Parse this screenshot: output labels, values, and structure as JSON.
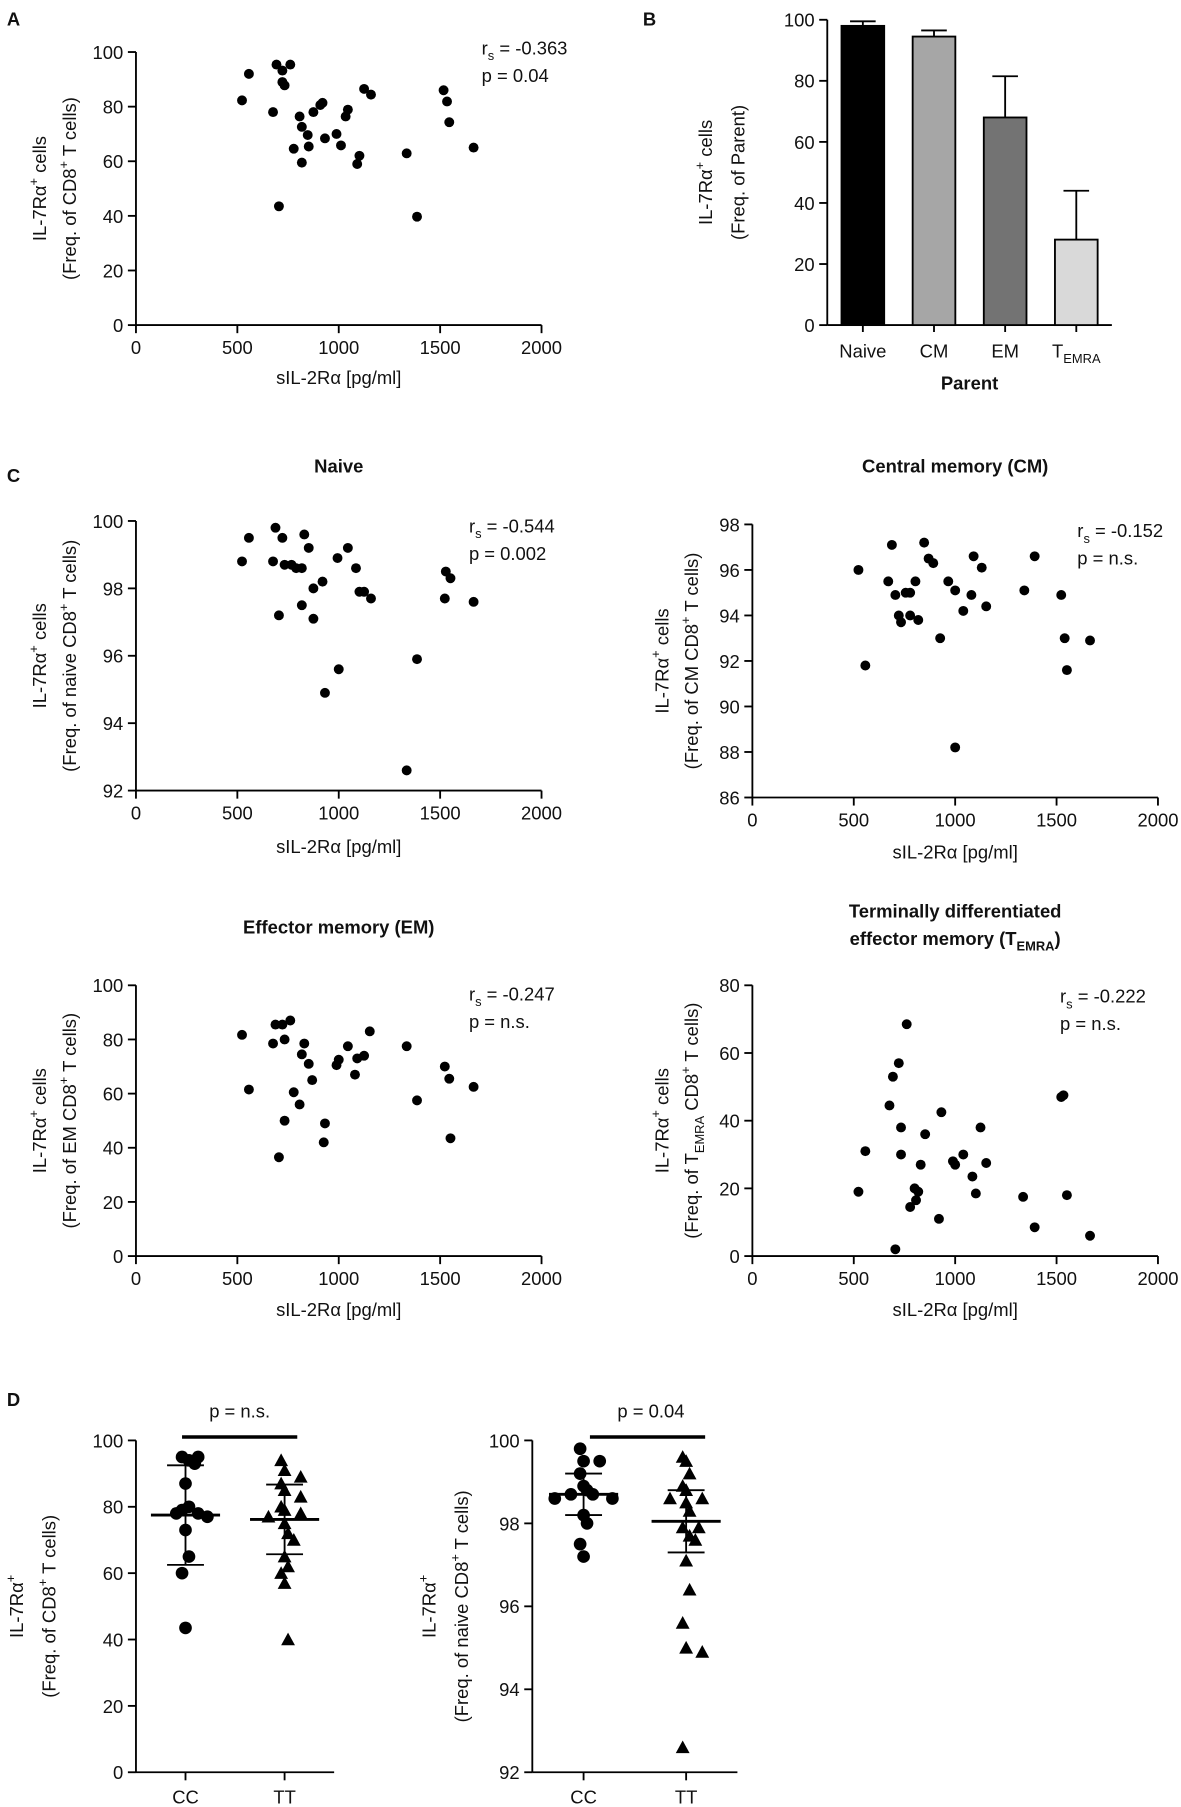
{
  "chart_data": [
    {
      "type": "scatter",
      "panel": "A",
      "ylabel": [
        [
          {
            "text": "IL-7Rα"
          },
          {
            "text": "+",
            "pos": "sup"
          },
          {
            "text": " cells"
          }
        ],
        [
          {
            "text": "(Freq. of CD8"
          },
          {
            "text": "+",
            "pos": "sup"
          },
          {
            "text": " T cells)"
          }
        ]
      ],
      "xlabel": "sIL-2Rα [pg/ml]",
      "annotations": [
        [
          {
            "text": "r"
          },
          {
            "text": "s",
            "pos": "sub"
          },
          {
            "text": " = -0.363"
          }
        ],
        "p = 0.04"
      ],
      "x": [
        523,
        557,
        693,
        722,
        733,
        722,
        761,
        676,
        705,
        778,
        807,
        818,
        847,
        818,
        875,
        920,
        909,
        852,
        932,
        989,
        1011,
        1045,
        1034,
        1091,
        1102,
        1125,
        1159,
        1335,
        1386,
        1517,
        1534,
        1545,
        1665
      ],
      "values": [
        82.3,
        92,
        95.4,
        93.2,
        87.8,
        89,
        95.4,
        78,
        43.5,
        64.6,
        76.4,
        72.6,
        69.6,
        59.5,
        78,
        81.4,
        80.6,
        65.4,
        68.4,
        70,
        65.8,
        78.9,
        76.4,
        59,
        62,
        86.5,
        84.4,
        62.9,
        39.7,
        86,
        81.9,
        74.3,
        65
      ],
      "color": "#000000",
      "xlim": [
        0,
        2000
      ],
      "xticks": [
        0,
        500,
        1000,
        1500,
        2000
      ],
      "ylim": [
        0,
        100
      ],
      "yticks": [
        0,
        20,
        40,
        60,
        80,
        100
      ]
    },
    {
      "type": "bar",
      "panel": "B",
      "ylabel": [
        [
          {
            "text": "IL-7Rα"
          },
          {
            "text": "+",
            "pos": "sup"
          },
          {
            "text": " cells"
          }
        ],
        "(Freq. of Parent)"
      ],
      "xlabel": "Parent",
      "categories": [
        "Naive",
        "CM",
        "EM",
        [
          {
            "text": "T"
          },
          {
            "text": "EMRA",
            "pos": "sub"
          }
        ]
      ],
      "values": [
        98,
        94.5,
        68,
        28
      ],
      "errors": [
        1.5,
        2,
        13.5,
        16
      ],
      "colors": [
        "#000000",
        "#a6a6a6",
        "#737373",
        "#d9d9d9"
      ],
      "ylim": [
        0,
        100
      ],
      "yticks": [
        0,
        20,
        40,
        60,
        80,
        100
      ]
    },
    {
      "type": "scatter",
      "panel": "C",
      "title": [
        "Naive"
      ],
      "ylabel": [
        [
          {
            "text": "IL-7Rα"
          },
          {
            "text": "+",
            "pos": "sup"
          },
          {
            "text": " cells"
          }
        ],
        [
          {
            "text": "(Freq. of naive CD8"
          },
          {
            "text": "+",
            "pos": "sup"
          },
          {
            "text": " T cells)"
          }
        ]
      ],
      "xlabel": "sIL-2Rα [pg/ml]",
      "annotations": [
        [
          {
            "text": "r"
          },
          {
            "text": "s",
            "pos": "sub"
          },
          {
            "text": " = -0.544"
          }
        ],
        "p = 0.002"
      ],
      "x": [
        523,
        557,
        688,
        722,
        676,
        733,
        767,
        790,
        818,
        705,
        818,
        830,
        852,
        875,
        920,
        875,
        932,
        994,
        1000,
        1045,
        1085,
        1102,
        1125,
        1159,
        1335,
        1386,
        1528,
        1551,
        1523,
        1665
      ],
      "values": [
        98.8,
        99.5,
        99.8,
        99.5,
        98.8,
        98.7,
        98.7,
        98.6,
        98.6,
        97.2,
        97.5,
        99.6,
        99.2,
        98.0,
        98.2,
        97.1,
        94.9,
        98.9,
        95.6,
        99.2,
        98.6,
        97.9,
        97.9,
        97.7,
        92.6,
        95.9,
        98.5,
        98.3,
        97.7,
        97.6
      ],
      "color": "#000000",
      "xlim": [
        0,
        2000
      ],
      "xticks": [
        0,
        500,
        1000,
        1500,
        2000
      ],
      "ylim": [
        92,
        100
      ],
      "yticks": [
        92,
        94,
        96,
        98,
        100
      ]
    },
    {
      "type": "scatter",
      "title": [
        "Central memory (CM)"
      ],
      "ylabel": [
        [
          {
            "text": "IL-7Rα"
          },
          {
            "text": "+",
            "pos": "sup"
          },
          {
            "text": " cells"
          }
        ],
        [
          {
            "text": "(Freq. of CM CD8"
          },
          {
            "text": "+",
            "pos": "sup"
          },
          {
            "text": " T cells)"
          }
        ]
      ],
      "xlabel": "sIL-2Rα [pg/ml]",
      "annotations": [
        [
          {
            "text": "r"
          },
          {
            "text": "s",
            "pos": "sub"
          },
          {
            "text": " = -0.152"
          }
        ],
        "p = n.s."
      ],
      "x": [
        523,
        557,
        688,
        670,
        705,
        722,
        733,
        756,
        778,
        804,
        778,
        818,
        847,
        869,
        892,
        926,
        966,
        1000,
        1040,
        1080,
        1091,
        1131,
        1153,
        1341,
        1392,
        1523,
        1540,
        1551,
        1665,
        1000
      ],
      "values": [
        96,
        91.8,
        97.1,
        95.5,
        94.9,
        94,
        93.7,
        95.0,
        95.0,
        95.5,
        94.0,
        93.8,
        97.2,
        96.5,
        96.3,
        93.0,
        95.5,
        88.2,
        94.2,
        94.9,
        96.6,
        96.1,
        94.4,
        95.1,
        96.6,
        94.9,
        93.0,
        91.6,
        92.9,
        95.1
      ],
      "color": "#000000",
      "xlim": [
        0,
        2000
      ],
      "xticks": [
        0,
        500,
        1000,
        1500,
        2000
      ],
      "ylim": [
        86,
        98
      ],
      "yticks": [
        86,
        88,
        90,
        92,
        94,
        96,
        98
      ]
    },
    {
      "type": "scatter",
      "title": [
        "Effector memory (EM)"
      ],
      "ylabel": [
        [
          {
            "text": "IL-7Rα"
          },
          {
            "text": "+",
            "pos": "sup"
          },
          {
            "text": " cells"
          }
        ],
        [
          {
            "text": "(Freq. of EM CD8"
          },
          {
            "text": "+",
            "pos": "sup"
          },
          {
            "text": " T cells)"
          }
        ]
      ],
      "xlabel": "sIL-2Rα [pg/ml]",
      "annotations": [
        [
          {
            "text": "r"
          },
          {
            "text": "s",
            "pos": "sub"
          },
          {
            "text": " = -0.247"
          }
        ],
        "p = n.s."
      ],
      "x": [
        523,
        557,
        688,
        722,
        761,
        676,
        733,
        778,
        733,
        705,
        818,
        830,
        852,
        807,
        926,
        932,
        869,
        989,
        1000,
        1045,
        1080,
        1091,
        1125,
        1153,
        1335,
        1386,
        1523,
        1545,
        1551,
        1665
      ],
      "values": [
        81.7,
        61.5,
        85.5,
        85.5,
        87,
        78.5,
        80,
        60.5,
        50,
        36.5,
        74.5,
        78.5,
        71,
        56,
        42,
        49,
        65,
        70.5,
        72.5,
        77.5,
        67,
        73,
        74,
        83,
        77.5,
        57.5,
        70,
        65.5,
        43.5,
        62.5
      ],
      "color": "#000000",
      "xlim": [
        0,
        2000
      ],
      "xticks": [
        0,
        500,
        1000,
        1500,
        2000
      ],
      "ylim": [
        0,
        100
      ],
      "yticks": [
        0,
        20,
        40,
        60,
        80,
        100
      ]
    },
    {
      "type": "scatter",
      "title": [
        "Terminally differentiated",
        [
          {
            "text": "effector memory (T"
          },
          {
            "text": "EMRA",
            "pos": "sub"
          },
          {
            "text": ")"
          }
        ]
      ],
      "ylabel": [
        [
          {
            "text": "IL-7Rα"
          },
          {
            "text": "+",
            "pos": "sup"
          },
          {
            "text": " cells"
          }
        ],
        [
          {
            "text": "(Freq. of T"
          },
          {
            "text": "EMRA",
            "pos": "sub"
          },
          {
            "text": " CD8"
          },
          {
            "text": "+",
            "pos": "sup"
          },
          {
            "text": " T cells)"
          }
        ]
      ],
      "xlabel": "sIL-2Rα [pg/ml]",
      "annotations": [
        [
          {
            "text": "r"
          },
          {
            "text": "s",
            "pos": "sub"
          },
          {
            "text": " = -0.222"
          }
        ],
        "p = n.s."
      ],
      "x": [
        523,
        557,
        676,
        693,
        722,
        705,
        733,
        733,
        761,
        778,
        800,
        807,
        818,
        830,
        852,
        920,
        932,
        989,
        1000,
        1040,
        1085,
        1102,
        1125,
        1153,
        1335,
        1392,
        1523,
        1534,
        1551,
        1665
      ],
      "values": [
        19,
        31,
        44.5,
        53,
        57,
        2,
        38,
        30,
        68.5,
        14.5,
        20,
        16.5,
        19,
        27,
        36,
        11,
        42.5,
        28,
        27,
        30,
        23.5,
        18.5,
        38,
        27.5,
        17.5,
        8.5,
        47,
        47.5,
        18,
        6
      ],
      "color": "#000000",
      "xlim": [
        0,
        2000
      ],
      "xticks": [
        0,
        500,
        1000,
        1500,
        2000
      ],
      "ylim": [
        0,
        80
      ],
      "yticks": [
        0,
        20,
        40,
        60,
        80
      ]
    },
    {
      "type": "dot",
      "panel": "D",
      "ylabel": [
        [
          {
            "text": "IL-7Rα"
          },
          {
            "text": "+",
            "pos": "sup"
          }
        ],
        [
          {
            "text": "(Freq. of CD8"
          },
          {
            "text": "+",
            "pos": "sup"
          },
          {
            "text": " T cells)"
          }
        ]
      ],
      "annotations": [
        "p = n.s."
      ],
      "groups": [
        {
          "name": "CC",
          "marker": "circle",
          "values": [
            95,
            95,
            94,
            93,
            87,
            80,
            79,
            78,
            78,
            77,
            73,
            65,
            60,
            43.5
          ],
          "mean": 77.5,
          "sd": 15
        },
        {
          "name": "TT",
          "marker": "triangle",
          "values": [
            94,
            91,
            89,
            87,
            85,
            83,
            80,
            79,
            78,
            77,
            75,
            72,
            70,
            65,
            62,
            60,
            57,
            40
          ],
          "mean": 76.2,
          "sd": 10.5
        }
      ],
      "color": "#000000",
      "ylim": [
        0,
        100
      ],
      "yticks": [
        0,
        20,
        40,
        60,
        80,
        100
      ]
    },
    {
      "type": "dot",
      "ylabel": [
        [
          {
            "text": "IL-7Rα"
          },
          {
            "text": "+",
            "pos": "sup"
          }
        ],
        [
          {
            "text": "(Freq. of naive CD8"
          },
          {
            "text": "+",
            "pos": "sup"
          },
          {
            "text": " T cells)"
          }
        ]
      ],
      "annotations": [
        "p = 0.04"
      ],
      "groups": [
        {
          "name": "CC",
          "marker": "circle",
          "values": [
            99.8,
            99.5,
            99.5,
            99.2,
            98.9,
            98.8,
            98.7,
            98.7,
            98.6,
            98.6,
            98.2,
            98.0,
            97.5,
            97.2
          ],
          "mean": 98.7,
          "sd": 0.5
        },
        {
          "name": "TT",
          "marker": "triangle",
          "values": [
            99.6,
            99.5,
            99.2,
            98.9,
            98.8,
            98.6,
            98.6,
            98.5,
            98.3,
            97.9,
            97.9,
            97.7,
            97.6,
            97.1,
            96.4,
            95.6,
            95.0,
            94.9,
            92.6
          ],
          "mean": 98.05,
          "sd": 0.75
        }
      ],
      "color": "#000000",
      "ylim": [
        92,
        100
      ],
      "yticks": [
        92,
        94,
        96,
        98,
        100
      ]
    }
  ]
}
